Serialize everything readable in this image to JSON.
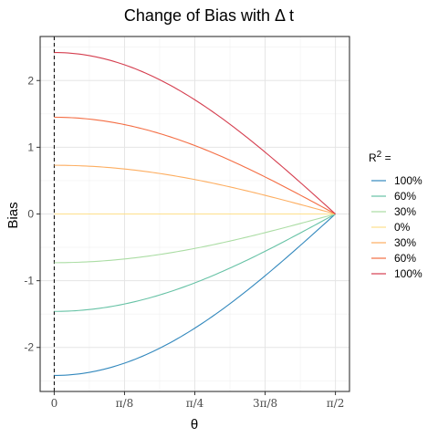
{
  "chart_data": {
    "type": "line",
    "title": "Change of Bias with  Δ t",
    "xlabel": "θ",
    "ylabel": "Bias",
    "x_ticks": [
      {
        "value": 0,
        "label": "0"
      },
      {
        "value": 0.3927,
        "label": "π/8"
      },
      {
        "value": 0.7854,
        "label": "π/4"
      },
      {
        "value": 1.1781,
        "label": "3π/8"
      },
      {
        "value": 1.5708,
        "label": "π/2"
      }
    ],
    "y_ticks": [
      -2,
      -1,
      0,
      1,
      2
    ],
    "xlim": [
      -0.0785,
      1.6493
    ],
    "ylim": [
      -2.66,
      2.66
    ],
    "grid": true,
    "vline": {
      "x": 0,
      "style": "dashed"
    },
    "curve_shape": "cosine",
    "legend": {
      "title": "R",
      "title_sup": "2",
      "title_suffix": " =",
      "position": "right"
    },
    "series": [
      {
        "name": "100%",
        "color": "#3288BD",
        "x": [
          0,
          0.3927,
          0.7854,
          1.1781,
          1.5708
        ],
        "values": [
          -2.42,
          -2.24,
          -1.71,
          -0.93,
          0
        ]
      },
      {
        "name": "60%",
        "color": "#66C2A5",
        "x": [
          0,
          0.3927,
          0.7854,
          1.1781,
          1.5708
        ],
        "values": [
          -1.46,
          -1.35,
          -1.03,
          -0.56,
          0
        ]
      },
      {
        "name": "30%",
        "color": "#ABDDA4",
        "x": [
          0,
          0.3927,
          0.7854,
          1.1781,
          1.5708
        ],
        "values": [
          -0.73,
          -0.67,
          -0.52,
          -0.28,
          0
        ]
      },
      {
        "name": "0%",
        "color": "#FEE08B",
        "x": [
          0,
          0.3927,
          0.7854,
          1.1781,
          1.5708
        ],
        "values": [
          0,
          0,
          0,
          0,
          0
        ]
      },
      {
        "name": "30%",
        "color": "#FDAE61",
        "x": [
          0,
          0.3927,
          0.7854,
          1.1781,
          1.5708
        ],
        "values": [
          0.73,
          0.67,
          0.52,
          0.28,
          0
        ]
      },
      {
        "name": "60%",
        "color": "#F46D43",
        "x": [
          0,
          0.3927,
          0.7854,
          1.1781,
          1.5708
        ],
        "values": [
          1.45,
          1.34,
          1.03,
          0.55,
          0
        ]
      },
      {
        "name": "100%",
        "color": "#D53E4F",
        "x": [
          0,
          0.3927,
          0.7854,
          1.1781,
          1.5708
        ],
        "values": [
          2.42,
          2.24,
          1.71,
          0.93,
          0
        ]
      }
    ]
  }
}
